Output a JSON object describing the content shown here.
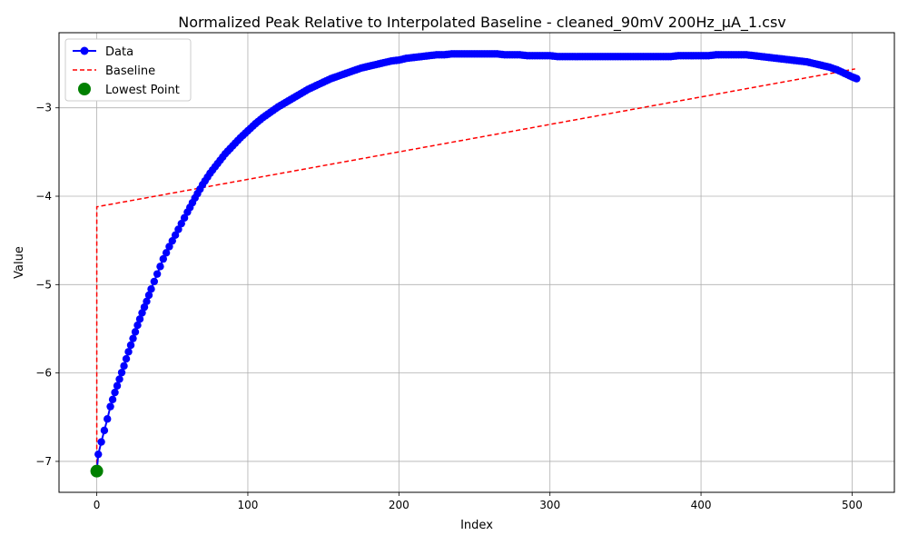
{
  "chart_data": {
    "type": "line",
    "title": "Normalized Peak Relative to Interpolated Baseline - cleaned_90mV 200Hz_µA_1.csv",
    "xlabel": "Index",
    "ylabel": "Value",
    "xlim": [
      -25,
      528
    ],
    "ylim": [
      -7.35,
      -2.15
    ],
    "xticks": [
      0,
      100,
      200,
      300,
      400,
      500
    ],
    "yticks": [
      -7,
      -6,
      -5,
      -4,
      -3
    ],
    "xtick_labels": [
      "0",
      "100",
      "200",
      "300",
      "400",
      "500"
    ],
    "ytick_labels": [
      "−7",
      "−6",
      "−5",
      "−4",
      "−3"
    ],
    "grid": true,
    "legend_position": "top-left",
    "colors": {
      "data": "#0000ff",
      "baseline": "#ff0000",
      "lowest": "#008000"
    },
    "series": [
      {
        "name": "Data",
        "style": "line-with-markers",
        "points": [
          [
            0,
            -7.11
          ],
          [
            1,
            -6.92
          ],
          [
            3,
            -6.78
          ],
          [
            5,
            -6.65
          ],
          [
            7,
            -6.52
          ],
          [
            9,
            -6.38
          ],
          [
            12,
            -6.22
          ],
          [
            15,
            -6.07
          ],
          [
            18,
            -5.92
          ],
          [
            21,
            -5.76
          ],
          [
            24,
            -5.61
          ],
          [
            27,
            -5.46
          ],
          [
            30,
            -5.32
          ],
          [
            33,
            -5.19
          ],
          [
            36,
            -5.05
          ],
          [
            40,
            -4.88
          ],
          [
            44,
            -4.71
          ],
          [
            48,
            -4.57
          ],
          [
            52,
            -4.44
          ],
          [
            56,
            -4.31
          ],
          [
            60,
            -4.18
          ],
          [
            65,
            -4.02
          ],
          [
            70,
            -3.87
          ],
          [
            75,
            -3.74
          ],
          [
            80,
            -3.63
          ],
          [
            85,
            -3.52
          ],
          [
            90,
            -3.43
          ],
          [
            95,
            -3.34
          ],
          [
            100,
            -3.26
          ],
          [
            105,
            -3.18
          ],
          [
            110,
            -3.11
          ],
          [
            115,
            -3.05
          ],
          [
            120,
            -2.99
          ],
          [
            125,
            -2.94
          ],
          [
            130,
            -2.89
          ],
          [
            135,
            -2.84
          ],
          [
            140,
            -2.79
          ],
          [
            145,
            -2.75
          ],
          [
            150,
            -2.71
          ],
          [
            155,
            -2.67
          ],
          [
            160,
            -2.64
          ],
          [
            165,
            -2.61
          ],
          [
            170,
            -2.58
          ],
          [
            175,
            -2.55
          ],
          [
            180,
            -2.53
          ],
          [
            185,
            -2.51
          ],
          [
            190,
            -2.49
          ],
          [
            195,
            -2.47
          ],
          [
            200,
            -2.46
          ],
          [
            205,
            -2.44
          ],
          [
            210,
            -2.43
          ],
          [
            215,
            -2.42
          ],
          [
            220,
            -2.41
          ],
          [
            225,
            -2.4
          ],
          [
            230,
            -2.4
          ],
          [
            235,
            -2.39
          ],
          [
            240,
            -2.39
          ],
          [
            245,
            -2.39
          ],
          [
            250,
            -2.39
          ],
          [
            255,
            -2.39
          ],
          [
            260,
            -2.39
          ],
          [
            265,
            -2.39
          ],
          [
            270,
            -2.4
          ],
          [
            275,
            -2.4
          ],
          [
            280,
            -2.4
          ],
          [
            285,
            -2.41
          ],
          [
            290,
            -2.41
          ],
          [
            295,
            -2.41
          ],
          [
            300,
            -2.41
          ],
          [
            305,
            -2.42
          ],
          [
            310,
            -2.42
          ],
          [
            315,
            -2.42
          ],
          [
            320,
            -2.42
          ],
          [
            325,
            -2.42
          ],
          [
            330,
            -2.42
          ],
          [
            335,
            -2.42
          ],
          [
            340,
            -2.42
          ],
          [
            345,
            -2.42
          ],
          [
            350,
            -2.42
          ],
          [
            355,
            -2.42
          ],
          [
            360,
            -2.42
          ],
          [
            365,
            -2.42
          ],
          [
            370,
            -2.42
          ],
          [
            375,
            -2.42
          ],
          [
            380,
            -2.42
          ],
          [
            385,
            -2.41
          ],
          [
            390,
            -2.41
          ],
          [
            395,
            -2.41
          ],
          [
            400,
            -2.41
          ],
          [
            405,
            -2.41
          ],
          [
            410,
            -2.4
          ],
          [
            415,
            -2.4
          ],
          [
            420,
            -2.4
          ],
          [
            425,
            -2.4
          ],
          [
            430,
            -2.4
          ],
          [
            435,
            -2.41
          ],
          [
            440,
            -2.42
          ],
          [
            445,
            -2.43
          ],
          [
            450,
            -2.44
          ],
          [
            455,
            -2.45
          ],
          [
            460,
            -2.46
          ],
          [
            465,
            -2.47
          ],
          [
            470,
            -2.48
          ],
          [
            475,
            -2.5
          ],
          [
            480,
            -2.52
          ],
          [
            485,
            -2.54
          ],
          [
            490,
            -2.57
          ],
          [
            495,
            -2.61
          ],
          [
            500,
            -2.65
          ],
          [
            503,
            -2.67
          ]
        ]
      },
      {
        "name": "Baseline",
        "style": "dashed-line",
        "points": [
          [
            0,
            -7.11
          ],
          [
            0,
            -4.12
          ],
          [
            502,
            -2.56
          ]
        ]
      },
      {
        "name": "Lowest Point",
        "style": "marker",
        "points": [
          [
            0,
            -7.11
          ]
        ]
      }
    ]
  }
}
